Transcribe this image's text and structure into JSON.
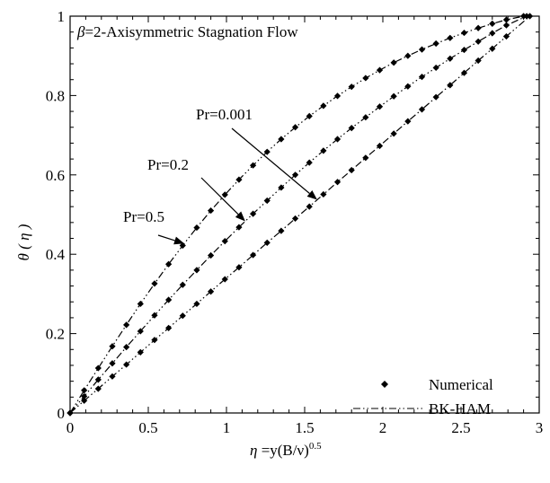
{
  "chart_data": {
    "type": "line",
    "title": "β=2-Axisymmetric  Stagnation Flow",
    "title_beta": "β",
    "title_rest": "=2-Axisymmetric  Stagnation Flow",
    "xlabel_eta": "η",
    "xlabel_main": " =y(B/ν)",
    "xlabel_sup": "0.5",
    "ylabel": "θ ( η )",
    "xlim": [
      0,
      3.0
    ],
    "ylim": [
      0,
      1.0
    ],
    "xticks": [
      0,
      0.5,
      1,
      1.5,
      2,
      2.5,
      3
    ],
    "xtick_labels": [
      "0",
      "0.5",
      "1",
      "1.5",
      "2",
      "2.5",
      "3"
    ],
    "yticks": [
      0,
      0.2,
      0.4,
      0.6,
      0.8,
      1
    ],
    "ytick_labels": [
      "0",
      "0.2",
      "0.4",
      "0.6",
      "0.8",
      "1"
    ],
    "grid": false,
    "legend_position": "bottom-right",
    "legend": [
      {
        "label": "Numerical",
        "style": "marker"
      },
      {
        "label": "BK-HAM",
        "style": "dash-dot-dot"
      }
    ],
    "series": [
      {
        "name": "Pr=0.5",
        "x": [
          0,
          0.09,
          0.18,
          0.27,
          0.36,
          0.45,
          0.54,
          0.63,
          0.72,
          0.81,
          0.9,
          0.99,
          1.08,
          1.17,
          1.26,
          1.35,
          1.44,
          1.53,
          1.62,
          1.71,
          1.8,
          1.89,
          1.98,
          2.07,
          2.16,
          2.25,
          2.34,
          2.43,
          2.52,
          2.61,
          2.7,
          2.79,
          2.9
        ],
        "y": [
          0,
          0.057,
          0.113,
          0.168,
          0.222,
          0.275,
          0.326,
          0.375,
          0.422,
          0.467,
          0.51,
          0.55,
          0.588,
          0.624,
          0.658,
          0.69,
          0.72,
          0.748,
          0.774,
          0.799,
          0.822,
          0.844,
          0.864,
          0.883,
          0.9,
          0.916,
          0.931,
          0.945,
          0.958,
          0.97,
          0.981,
          0.991,
          1.0
        ]
      },
      {
        "name": "Pr=0.2",
        "x": [
          0,
          0.09,
          0.18,
          0.27,
          0.36,
          0.45,
          0.54,
          0.63,
          0.72,
          0.81,
          0.9,
          0.99,
          1.08,
          1.17,
          1.26,
          1.35,
          1.44,
          1.53,
          1.62,
          1.71,
          1.8,
          1.89,
          1.98,
          2.07,
          2.16,
          2.25,
          2.34,
          2.43,
          2.52,
          2.61,
          2.7,
          2.79,
          2.92
        ],
        "y": [
          0,
          0.042,
          0.084,
          0.125,
          0.166,
          0.206,
          0.246,
          0.285,
          0.323,
          0.36,
          0.397,
          0.433,
          0.468,
          0.502,
          0.535,
          0.568,
          0.6,
          0.631,
          0.661,
          0.69,
          0.718,
          0.745,
          0.772,
          0.798,
          0.823,
          0.847,
          0.87,
          0.893,
          0.915,
          0.936,
          0.957,
          0.977,
          1.0
        ]
      },
      {
        "name": "Pr=0.001",
        "x": [
          0,
          0.09,
          0.18,
          0.27,
          0.36,
          0.45,
          0.54,
          0.63,
          0.72,
          0.81,
          0.9,
          0.99,
          1.08,
          1.17,
          1.26,
          1.35,
          1.44,
          1.53,
          1.62,
          1.71,
          1.8,
          1.89,
          1.98,
          2.07,
          2.16,
          2.25,
          2.34,
          2.43,
          2.52,
          2.61,
          2.7,
          2.79,
          2.94
        ],
        "y": [
          0,
          0.031,
          0.061,
          0.092,
          0.122,
          0.153,
          0.184,
          0.214,
          0.245,
          0.275,
          0.306,
          0.337,
          0.367,
          0.398,
          0.429,
          0.459,
          0.49,
          0.52,
          0.551,
          0.582,
          0.612,
          0.643,
          0.673,
          0.704,
          0.735,
          0.765,
          0.796,
          0.826,
          0.857,
          0.888,
          0.918,
          0.949,
          1.0
        ]
      }
    ],
    "annotations": [
      {
        "text": "Pr=0.001",
        "series": 2,
        "point_x": 1.58
      },
      {
        "text": "Pr=0.2",
        "series": 1,
        "point_x": 1.12
      },
      {
        "text": "Pr=0.5",
        "series": 0,
        "point_x": 0.73
      }
    ]
  }
}
